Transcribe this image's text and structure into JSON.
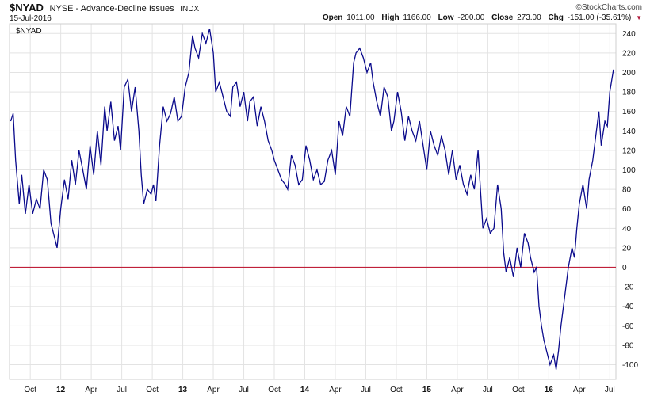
{
  "header": {
    "symbol": "$NYAD",
    "description": "NYSE - Advance-Decline Issues",
    "exchange": "INDX",
    "date": "15-Jul-2016",
    "watermark": "©StockCharts.com",
    "open_label": "Open",
    "open_value": "1011.00",
    "high_label": "High",
    "high_value": "1166.00",
    "low_label": "Low",
    "low_value": "-200.00",
    "close_label": "Close",
    "close_value": "273.00",
    "chg_label": "Chg",
    "chg_value": "-151.00 (-35.61%)",
    "chg_arrow": "▼",
    "legend_label": "$NYAD"
  },
  "chart_data": {
    "type": "line",
    "title": "$NYAD NYSE - Advance-Decline Issues INDX",
    "ylim": [
      -115,
      250
    ],
    "y_ticks": [
      240,
      220,
      200,
      180,
      160,
      140,
      120,
      100,
      80,
      60,
      40,
      20,
      0,
      -20,
      -40,
      -60,
      -80,
      -100
    ],
    "x_range": [
      2011.58,
      2016.55
    ],
    "x_ticks": [
      {
        "label": "Oct",
        "x": 2011.75
      },
      {
        "label": "12",
        "x": 2012.0
      },
      {
        "label": "Apr",
        "x": 2012.25
      },
      {
        "label": "Jul",
        "x": 2012.5
      },
      {
        "label": "Oct",
        "x": 2012.75
      },
      {
        "label": "13",
        "x": 2013.0
      },
      {
        "label": "Apr",
        "x": 2013.25
      },
      {
        "label": "Jul",
        "x": 2013.5
      },
      {
        "label": "Oct",
        "x": 2013.75
      },
      {
        "label": "14",
        "x": 2014.0
      },
      {
        "label": "Apr",
        "x": 2014.25
      },
      {
        "label": "Jul",
        "x": 2014.5
      },
      {
        "label": "Oct",
        "x": 2014.75
      },
      {
        "label": "15",
        "x": 2015.0
      },
      {
        "label": "Apr",
        "x": 2015.25
      },
      {
        "label": "Jul",
        "x": 2015.5
      },
      {
        "label": "Oct",
        "x": 2015.75
      },
      {
        "label": "16",
        "x": 2016.0
      },
      {
        "label": "Apr",
        "x": 2016.25
      },
      {
        "label": "Jul",
        "x": 2016.5
      }
    ],
    "zero_line": 0,
    "grid": true,
    "series": [
      {
        "name": "$NYAD",
        "color": "#0a0a8c",
        "points": [
          [
            2011.59,
            150
          ],
          [
            2011.61,
            158
          ],
          [
            2011.63,
            110
          ],
          [
            2011.66,
            65
          ],
          [
            2011.68,
            95
          ],
          [
            2011.71,
            55
          ],
          [
            2011.74,
            85
          ],
          [
            2011.77,
            55
          ],
          [
            2011.8,
            70
          ],
          [
            2011.83,
            60
          ],
          [
            2011.86,
            100
          ],
          [
            2011.89,
            90
          ],
          [
            2011.92,
            45
          ],
          [
            2011.95,
            30
          ],
          [
            2011.97,
            20
          ],
          [
            2012.0,
            60
          ],
          [
            2012.03,
            90
          ],
          [
            2012.06,
            70
          ],
          [
            2012.09,
            110
          ],
          [
            2012.12,
            85
          ],
          [
            2012.15,
            120
          ],
          [
            2012.18,
            100
          ],
          [
            2012.21,
            80
          ],
          [
            2012.24,
            125
          ],
          [
            2012.27,
            95
          ],
          [
            2012.3,
            140
          ],
          [
            2012.33,
            105
          ],
          [
            2012.36,
            165
          ],
          [
            2012.38,
            140
          ],
          [
            2012.41,
            170
          ],
          [
            2012.44,
            130
          ],
          [
            2012.47,
            145
          ],
          [
            2012.49,
            120
          ],
          [
            2012.52,
            185
          ],
          [
            2012.55,
            193
          ],
          [
            2012.58,
            160
          ],
          [
            2012.61,
            185
          ],
          [
            2012.64,
            140
          ],
          [
            2012.66,
            95
          ],
          [
            2012.68,
            65
          ],
          [
            2012.71,
            80
          ],
          [
            2012.74,
            75
          ],
          [
            2012.76,
            85
          ],
          [
            2012.78,
            68
          ],
          [
            2012.81,
            125
          ],
          [
            2012.84,
            165
          ],
          [
            2012.87,
            150
          ],
          [
            2012.9,
            158
          ],
          [
            2012.93,
            175
          ],
          [
            2012.96,
            150
          ],
          [
            2012.99,
            155
          ],
          [
            2013.02,
            185
          ],
          [
            2013.05,
            200
          ],
          [
            2013.08,
            238
          ],
          [
            2013.1,
            225
          ],
          [
            2013.13,
            215
          ],
          [
            2013.16,
            240
          ],
          [
            2013.19,
            230
          ],
          [
            2013.22,
            245
          ],
          [
            2013.25,
            220
          ],
          [
            2013.27,
            180
          ],
          [
            2013.3,
            190
          ],
          [
            2013.33,
            175
          ],
          [
            2013.36,
            160
          ],
          [
            2013.39,
            155
          ],
          [
            2013.41,
            185
          ],
          [
            2013.44,
            190
          ],
          [
            2013.47,
            165
          ],
          [
            2013.5,
            180
          ],
          [
            2013.53,
            150
          ],
          [
            2013.55,
            170
          ],
          [
            2013.58,
            175
          ],
          [
            2013.61,
            145
          ],
          [
            2013.64,
            165
          ],
          [
            2013.67,
            150
          ],
          [
            2013.7,
            130
          ],
          [
            2013.73,
            120
          ],
          [
            2013.75,
            110
          ],
          [
            2013.78,
            100
          ],
          [
            2013.81,
            90
          ],
          [
            2013.84,
            85
          ],
          [
            2013.86,
            80
          ],
          [
            2013.89,
            115
          ],
          [
            2013.92,
            105
          ],
          [
            2013.95,
            85
          ],
          [
            2013.98,
            90
          ],
          [
            2014.01,
            125
          ],
          [
            2014.04,
            110
          ],
          [
            2014.07,
            90
          ],
          [
            2014.1,
            100
          ],
          [
            2014.13,
            85
          ],
          [
            2014.16,
            88
          ],
          [
            2014.19,
            110
          ],
          [
            2014.22,
            120
          ],
          [
            2014.25,
            95
          ],
          [
            2014.28,
            150
          ],
          [
            2014.31,
            135
          ],
          [
            2014.34,
            165
          ],
          [
            2014.37,
            155
          ],
          [
            2014.4,
            210
          ],
          [
            2014.42,
            220
          ],
          [
            2014.45,
            225
          ],
          [
            2014.48,
            215
          ],
          [
            2014.51,
            200
          ],
          [
            2014.54,
            210
          ],
          [
            2014.56,
            190
          ],
          [
            2014.59,
            170
          ],
          [
            2014.62,
            155
          ],
          [
            2014.65,
            185
          ],
          [
            2014.68,
            175
          ],
          [
            2014.71,
            140
          ],
          [
            2014.73,
            150
          ],
          [
            2014.76,
            180
          ],
          [
            2014.79,
            160
          ],
          [
            2014.82,
            130
          ],
          [
            2014.85,
            155
          ],
          [
            2014.88,
            140
          ],
          [
            2014.91,
            130
          ],
          [
            2014.94,
            150
          ],
          [
            2014.97,
            125
          ],
          [
            2015.0,
            100
          ],
          [
            2015.03,
            140
          ],
          [
            2015.06,
            125
          ],
          [
            2015.09,
            115
          ],
          [
            2015.12,
            135
          ],
          [
            2015.15,
            120
          ],
          [
            2015.18,
            95
          ],
          [
            2015.21,
            120
          ],
          [
            2015.24,
            90
          ],
          [
            2015.27,
            105
          ],
          [
            2015.3,
            85
          ],
          [
            2015.33,
            75
          ],
          [
            2015.36,
            95
          ],
          [
            2015.39,
            80
          ],
          [
            2015.42,
            120
          ],
          [
            2015.44,
            80
          ],
          [
            2015.46,
            40
          ],
          [
            2015.49,
            50
          ],
          [
            2015.52,
            35
          ],
          [
            2015.55,
            40
          ],
          [
            2015.58,
            85
          ],
          [
            2015.61,
            60
          ],
          [
            2015.63,
            15
          ],
          [
            2015.65,
            -5
          ],
          [
            2015.68,
            10
          ],
          [
            2015.71,
            -10
          ],
          [
            2015.74,
            20
          ],
          [
            2015.77,
            0
          ],
          [
            2015.8,
            35
          ],
          [
            2015.83,
            25
          ],
          [
            2015.85,
            10
          ],
          [
            2015.88,
            -5
          ],
          [
            2015.9,
            0
          ],
          [
            2015.92,
            -40
          ],
          [
            2015.94,
            -60
          ],
          [
            2015.96,
            -75
          ],
          [
            2015.98,
            -85
          ],
          [
            2016.01,
            -100
          ],
          [
            2016.04,
            -90
          ],
          [
            2016.06,
            -105
          ],
          [
            2016.08,
            -85
          ],
          [
            2016.1,
            -60
          ],
          [
            2016.13,
            -30
          ],
          [
            2016.16,
            0
          ],
          [
            2016.19,
            20
          ],
          [
            2016.21,
            10
          ],
          [
            2016.23,
            40
          ],
          [
            2016.25,
            65
          ],
          [
            2016.28,
            85
          ],
          [
            2016.31,
            60
          ],
          [
            2016.33,
            90
          ],
          [
            2016.36,
            110
          ],
          [
            2016.39,
            140
          ],
          [
            2016.41,
            160
          ],
          [
            2016.43,
            125
          ],
          [
            2016.46,
            150
          ],
          [
            2016.48,
            145
          ],
          [
            2016.5,
            180
          ],
          [
            2016.53,
            203
          ]
        ]
      }
    ]
  }
}
